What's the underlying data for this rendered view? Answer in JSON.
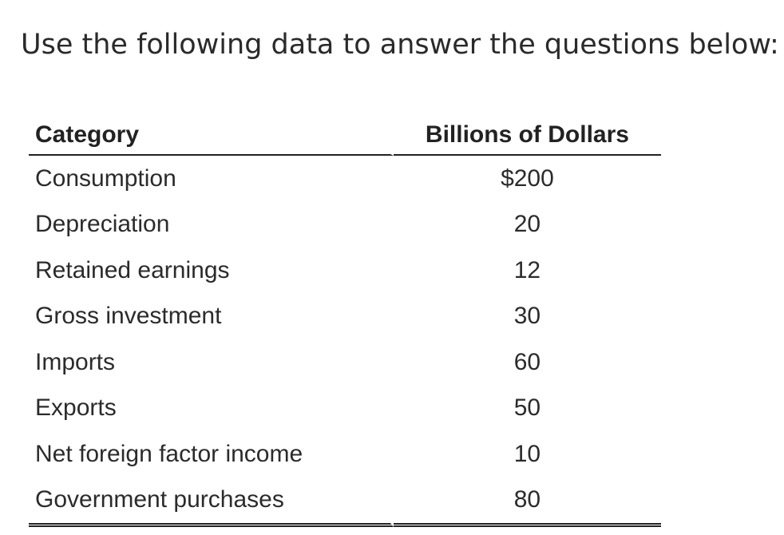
{
  "intro_text": "Use the following data to answer the questions below:",
  "table": {
    "headers": [
      "Category",
      "Billions of Dollars"
    ],
    "rows": [
      {
        "category": "Consumption",
        "value": "$200"
      },
      {
        "category": "Depreciation",
        "value": "20"
      },
      {
        "category": "Retained earnings",
        "value": "12"
      },
      {
        "category": "Gross investment",
        "value": "30"
      },
      {
        "category": "Imports",
        "value": "60"
      },
      {
        "category": "Exports",
        "value": "50"
      },
      {
        "category": "Net foreign factor income",
        "value": "10"
      },
      {
        "category": "Government purchases",
        "value": "80"
      }
    ]
  }
}
